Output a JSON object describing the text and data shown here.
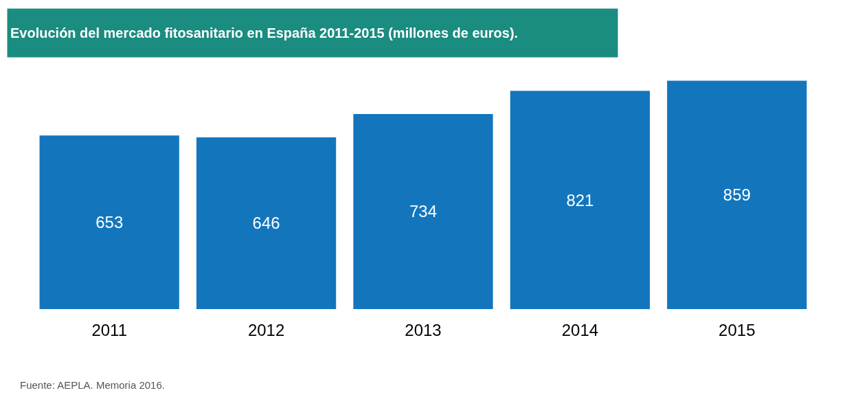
{
  "chart_data": {
    "type": "bar",
    "title": "Evolución del mercado fitosanitario en España 2011-2015 (millones de euros).",
    "categories": [
      "2011",
      "2012",
      "2013",
      "2014",
      "2015"
    ],
    "values": [
      653,
      646,
      734,
      821,
      859
    ],
    "color": "#1376bd",
    "data_labels": true,
    "legend": false,
    "tick_labels": "x",
    "annotations": [
      "Fuente: AEPLA. Memoria 2016."
    ]
  }
}
